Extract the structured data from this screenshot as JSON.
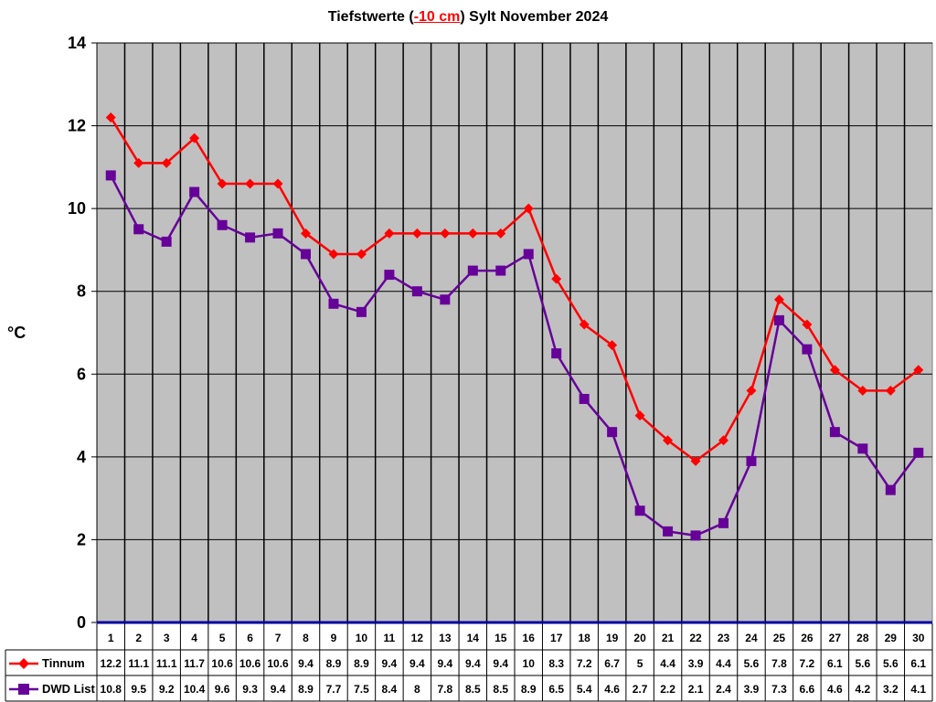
{
  "title": {
    "prefix": "Tiefstwerte (",
    "highlight": "-10 cm",
    "suffix": ") Sylt November 2024",
    "highlight_color": "#ff0000"
  },
  "chart_data": {
    "type": "line",
    "title": "Tiefstwerte (-10 cm) Sylt November 2024",
    "xlabel": "",
    "ylabel": "°C",
    "ylim": [
      0,
      14
    ],
    "yticks": [
      0,
      2,
      4,
      6,
      8,
      10,
      12,
      14
    ],
    "grid": true,
    "plot_background": "#c0c0c0",
    "legend_position": "data-table-left",
    "categories": [
      "1",
      "2",
      "3",
      "4",
      "5",
      "6",
      "7",
      "8",
      "9",
      "10",
      "11",
      "12",
      "13",
      "14",
      "15",
      "16",
      "17",
      "18",
      "19",
      "20",
      "21",
      "22",
      "23",
      "24",
      "25",
      "26",
      "27",
      "28",
      "29",
      "30"
    ],
    "series": [
      {
        "name": "Tinnum",
        "color": "#ff0000",
        "marker": "diamond",
        "values": [
          12.2,
          11.1,
          11.1,
          11.7,
          10.6,
          10.6,
          10.6,
          9.4,
          8.9,
          8.9,
          9.4,
          9.4,
          9.4,
          9.4,
          9.4,
          10,
          8.3,
          7.2,
          6.7,
          5,
          4.4,
          3.9,
          4.4,
          5.6,
          7.8,
          7.2,
          6.1,
          5.6,
          5.6,
          6.1
        ]
      },
      {
        "name": "DWD List",
        "color": "#660099",
        "marker": "square",
        "values": [
          10.8,
          9.5,
          9.2,
          10.4,
          9.6,
          9.3,
          9.4,
          8.9,
          7.7,
          7.5,
          8.4,
          8,
          7.8,
          8.5,
          8.5,
          8.9,
          6.5,
          5.4,
          4.6,
          2.7,
          2.2,
          2.1,
          2.4,
          3.9,
          7.3,
          6.6,
          4.6,
          4.2,
          3.2,
          4.1
        ]
      }
    ],
    "data_table": true
  }
}
